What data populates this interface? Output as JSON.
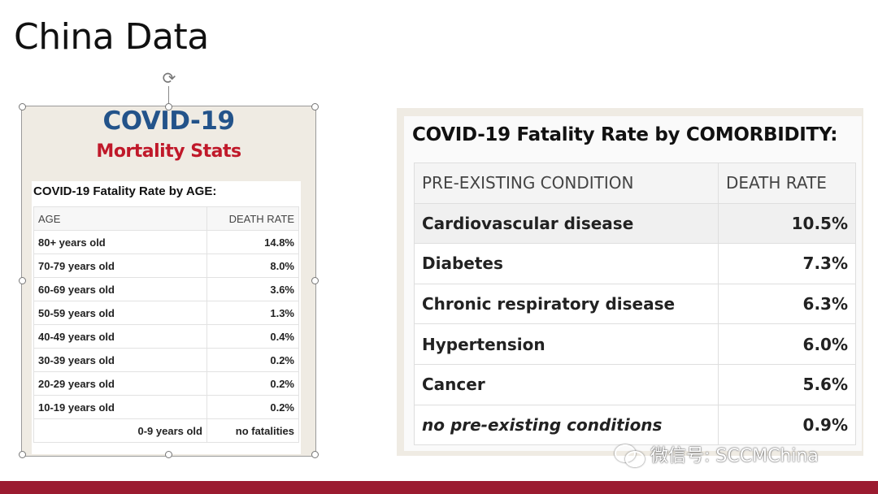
{
  "slide": {
    "title": "China Data"
  },
  "age_panel": {
    "title_line1": "COVID-19",
    "title_line2": "Mortality Stats",
    "heading": "COVID-19 Fatality Rate by AGE:",
    "columns": [
      "AGE",
      "DEATH RATE"
    ],
    "rows": [
      {
        "age": "80+ years old",
        "rate": "14.8%"
      },
      {
        "age": "70-79 years old",
        "rate": "8.0%"
      },
      {
        "age": "60-69 years old",
        "rate": "3.6%"
      },
      {
        "age": "50-59 years old",
        "rate": "1.3%"
      },
      {
        "age": "40-49 years old",
        "rate": "0.4%"
      },
      {
        "age": "30-39 years old",
        "rate": "0.2%"
      },
      {
        "age": "20-29 years old",
        "rate": "0.2%"
      },
      {
        "age": "10-19 years old",
        "rate": "0.2%"
      },
      {
        "age": "0-9 years old",
        "rate": "no fatalities"
      }
    ]
  },
  "comorbidity_panel": {
    "heading": "COVID-19 Fatality Rate by COMORBIDITY:",
    "columns": [
      "PRE-EXISTING CONDITION",
      "DEATH RATE"
    ],
    "rows": [
      {
        "condition": "Cardiovascular disease",
        "rate": "10.5%"
      },
      {
        "condition": "Diabetes",
        "rate": "7.3%"
      },
      {
        "condition": "Chronic respiratory disease",
        "rate": "6.3%"
      },
      {
        "condition": "Hypertension",
        "rate": "6.0%"
      },
      {
        "condition": "Cancer",
        "rate": "5.6%"
      },
      {
        "condition": "no pre-existing conditions",
        "rate": "0.9%"
      }
    ]
  },
  "watermark": {
    "text": "微信号: SCCMChina",
    "icon": "wechat-icon"
  },
  "colors": {
    "covid_blue": "#23538a",
    "mortality_red": "#c0192a",
    "bottom_bar": "#9b1b30"
  }
}
